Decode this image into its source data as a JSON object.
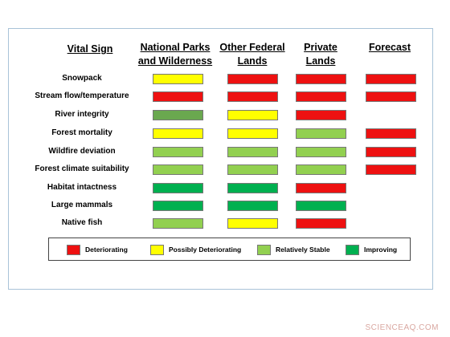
{
  "headers": {
    "vital_sign": "Vital Sign",
    "national_parks_line1": "National Parks",
    "national_parks_line2": "and Wilderness",
    "other_federal_line1": "Other Federal",
    "other_federal_line2": "Lands",
    "private_line1": "Private",
    "private_line2": "Lands",
    "forecast": "Forecast"
  },
  "colors": {
    "R": "#ee1111",
    "Y": "#ffff00",
    "L": "#92d050",
    "G": "#00b050",
    "M": "#6aa84f"
  },
  "rows": [
    {
      "label": "Snowpack",
      "cells": [
        "Y",
        "R",
        "R",
        "R"
      ]
    },
    {
      "label": "Stream flow/temperature",
      "cells": [
        "R",
        "R",
        "R",
        "R"
      ]
    },
    {
      "label": "River integrity",
      "cells": [
        "M",
        "Y",
        "R",
        ""
      ]
    },
    {
      "label": "Forest mortality",
      "cells": [
        "Y",
        "Y",
        "L",
        "R"
      ]
    },
    {
      "label": "Wildfire deviation",
      "cells": [
        "L",
        "L",
        "L",
        "R"
      ]
    },
    {
      "label": "Forest climate suitability",
      "cells": [
        "L",
        "L",
        "L",
        "R"
      ]
    },
    {
      "label": "Habitat intactness",
      "cells": [
        "G",
        "G",
        "R",
        ""
      ]
    },
    {
      "label": "Large mammals",
      "cells": [
        "G",
        "G",
        "G",
        ""
      ]
    },
    {
      "label": "Native fish",
      "cells": [
        "L",
        "Y",
        "R",
        ""
      ]
    }
  ],
  "legend": [
    {
      "key": "R",
      "label": "Deteriorating"
    },
    {
      "key": "Y",
      "label": "Possibly Deteriorating"
    },
    {
      "key": "L",
      "label": "Relatively Stable"
    },
    {
      "key": "G",
      "label": "Improving"
    }
  ],
  "watermark": "SCIENCEAQ.COM"
}
